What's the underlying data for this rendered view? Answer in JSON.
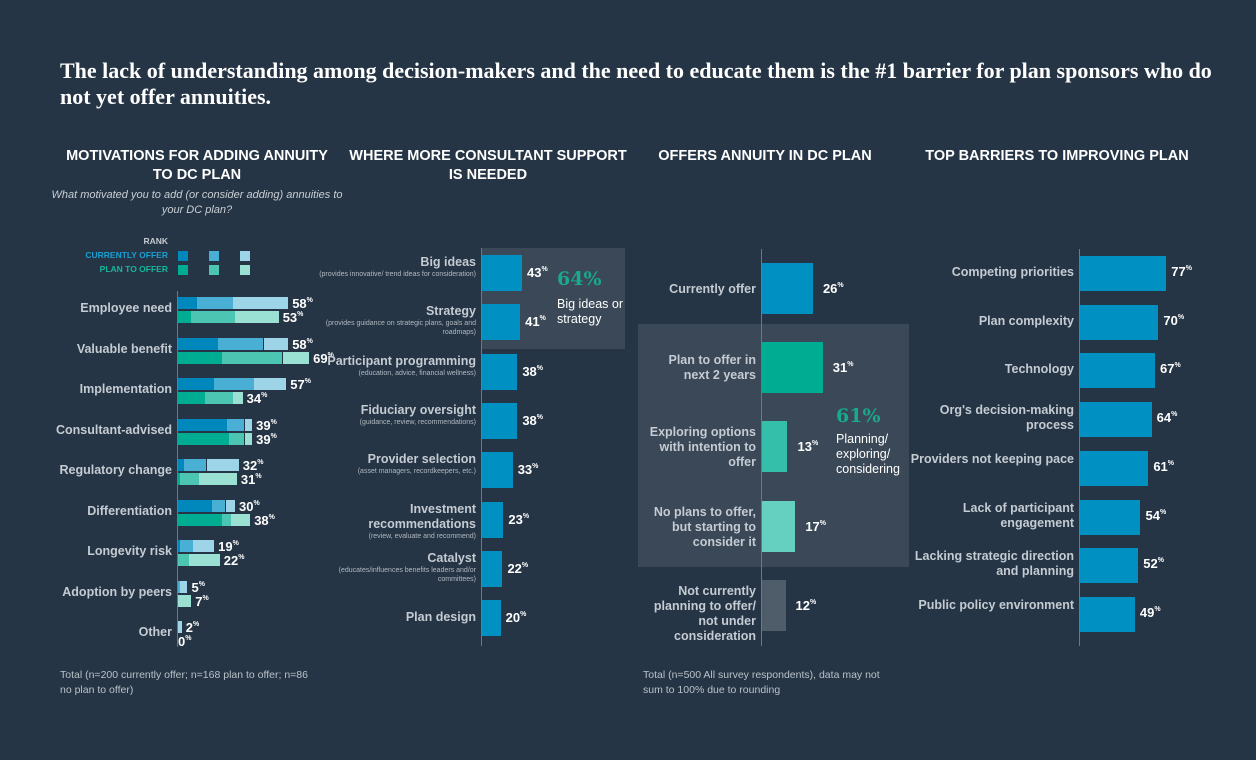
{
  "headline": "The lack of understanding among decision-makers and the need to educate them is the #1 barrier for plan sponsors who do not yet offer annuities.",
  "colors": {
    "background": "#263545",
    "currently_offer": [
      "#0088bd",
      "#4aafd4",
      "#9dd4e8"
    ],
    "plan_to_offer": [
      "#00ad93",
      "#4cc6b3",
      "#9ae0d3"
    ],
    "single_bar": "#0090c2",
    "highlight": "#1aa88e",
    "panel": "#3a4857"
  },
  "chart_data": [
    {
      "type": "bar",
      "orientation": "horizontal",
      "stacked": true,
      "title": "MOTIVATIONS FOR ADDING ANNUITY TO DC PLAN",
      "subtitle": "What motivated you to add (or consider adding) annuities to your DC plan?",
      "legend": {
        "title": "RANK",
        "series": [
          "CURRENTLY OFFER",
          "PLAN TO OFFER"
        ],
        "stack_meaning": "rank 1 / rank 2 / rank 3",
        "placement": "top-left"
      },
      "categories": [
        "Employee need",
        "Valuable benefit",
        "Implementation",
        "Consultant-advised",
        "Regulatory change",
        "Differentiation",
        "Longevity risk",
        "Adoption by peers",
        "Other"
      ],
      "series": [
        {
          "name": "CURRENTLY OFFER",
          "totals": [
            "58",
            "58",
            "57",
            "39",
            "32",
            "30",
            "19",
            "5",
            "2"
          ],
          "ranks": [
            [
              10,
              19,
              29
            ],
            [
              21,
              24,
              13
            ],
            [
              19,
              21,
              17
            ],
            [
              26,
              9,
              4
            ],
            [
              3,
              12,
              17
            ],
            [
              18,
              7,
              5
            ],
            [
              1,
              7,
              11
            ],
            [
              0,
              1,
              4
            ],
            [
              0,
              0,
              2
            ]
          ]
        },
        {
          "name": "PLAN TO OFFER",
          "totals": [
            "53",
            "69",
            "34",
            "39",
            "31",
            "38",
            "22",
            "7",
            "0"
          ],
          "ranks": [
            [
              7,
              23,
              23
            ],
            [
              23,
              32,
              14
            ],
            [
              14,
              15,
              5
            ],
            [
              27,
              8,
              4
            ],
            [
              1,
              10,
              20
            ],
            [
              23,
              5,
              10
            ],
            [
              0,
              6,
              16
            ],
            [
              0,
              0,
              7
            ],
            [
              0,
              0,
              0
            ]
          ]
        }
      ],
      "unit": "%",
      "footnote": "Total (n=200 currently offer; n=168 plan to offer; n=86 no plan to offer)"
    },
    {
      "type": "bar",
      "orientation": "horizontal",
      "title": "WHERE MORE CONSULTANT SUPPORT IS NEEDED",
      "categories": [
        "Big ideas",
        "Strategy",
        "Participant programming",
        "Fiduciary oversight",
        "Provider selection",
        "Investment recommendations",
        "Catalyst",
        "Plan design"
      ],
      "descriptions": [
        "(provides innovative/ trend ideas for consideration)",
        "(provides guidance on strategic plans, goals and roadmaps)",
        "(education, advice, financial wellness)",
        "(guidance, review, recommendations)",
        "(asset managers, recordkeepers, etc.)",
        "(review, evaluate and recommend)",
        "(educates/influences benefits leaders and/or committees)",
        ""
      ],
      "values": [
        "43",
        "41",
        "38",
        "38",
        "33",
        "23",
        "22",
        "20"
      ],
      "unit": "%",
      "callout": {
        "value": "64%",
        "text": "Big ideas or strategy"
      }
    },
    {
      "type": "bar",
      "orientation": "horizontal",
      "title": "OFFERS ANNUITY IN DC PLAN",
      "categories": [
        "Currently offer",
        "Plan to offer in next 2 years",
        "Exploring options with intention to offer",
        "No plans to offer, but starting to consider it",
        "Not currently planning to offer/ not under consideration"
      ],
      "values": [
        "26",
        "31",
        "13",
        "17",
        "12"
      ],
      "bar_colors": [
        "#0090c2",
        "#00ad93",
        "#33bfaa",
        "#66d0c0",
        "#4f5d6a"
      ],
      "unit": "%",
      "callout": {
        "value": "61%",
        "text": "Planning/ exploring/ considering"
      },
      "footnote": "Total (n=500 All survey respondents), data may not sum to 100% due to rounding"
    },
    {
      "type": "bar",
      "orientation": "horizontal",
      "title": "TOP BARRIERS TO IMPROVING PLAN",
      "categories": [
        "Competing priorities",
        "Plan complexity",
        "Technology",
        "Org's decision-making process",
        "Providers not keeping pace",
        "Lack of participant engagement",
        "Lacking strategic direction and planning",
        "Public policy environment"
      ],
      "values": [
        "77",
        "70",
        "67",
        "64",
        "61",
        "54",
        "52",
        "49"
      ],
      "unit": "%"
    }
  ]
}
